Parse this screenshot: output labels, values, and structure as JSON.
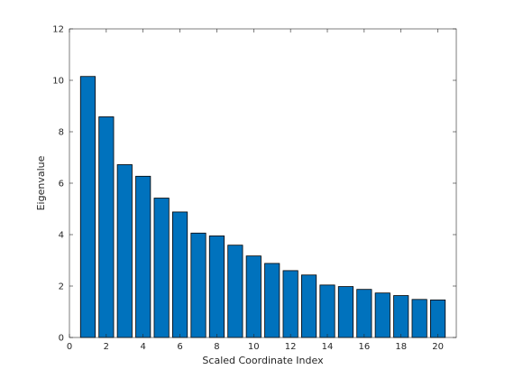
{
  "chart_data": {
    "type": "bar",
    "title": "",
    "xlabel": "Scaled Coordinate Index",
    "ylabel": "Eigenvalue",
    "x": [
      1,
      2,
      3,
      4,
      5,
      6,
      7,
      8,
      9,
      10,
      11,
      12,
      13,
      14,
      15,
      16,
      17,
      18,
      19,
      20
    ],
    "values": [
      10.15,
      8.58,
      6.72,
      6.27,
      5.42,
      4.88,
      4.06,
      3.95,
      3.59,
      3.17,
      2.88,
      2.6,
      2.43,
      2.04,
      1.98,
      1.87,
      1.73,
      1.63,
      1.48,
      1.46
    ],
    "xlim": [
      0,
      21
    ],
    "ylim": [
      0,
      12
    ],
    "xticks": [
      0,
      2,
      4,
      6,
      8,
      10,
      12,
      14,
      16,
      18,
      20
    ],
    "yticks": [
      0,
      2,
      4,
      6,
      8,
      10,
      12
    ],
    "bar_color": "#0072BD",
    "edge_color": "#000000",
    "grid": false,
    "legend": "none"
  }
}
